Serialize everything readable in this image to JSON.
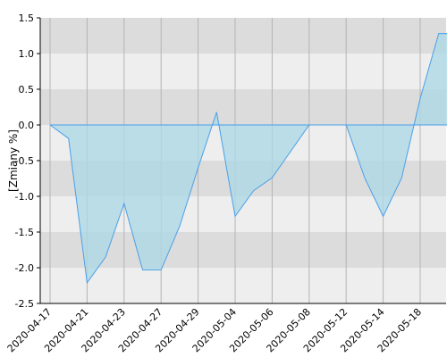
{
  "chart_data": {
    "type": "area",
    "ylabel": "[Zmiany %]",
    "ylim": [
      -2.5,
      1.5
    ],
    "yticks": [
      "1.5",
      "1.0",
      "0.5",
      "0.0",
      "-0.5",
      "-1.0",
      "-1.5",
      "-2.0",
      "-2.5"
    ],
    "xticks": [
      "2020-04-17",
      "2020-04-21",
      "2020-04-23",
      "2020-04-27",
      "2020-04-29",
      "2020-05-04",
      "2020-05-06",
      "2020-05-08",
      "2020-05-12",
      "2020-05-14",
      "2020-05-18"
    ],
    "grid": true,
    "series": [
      {
        "x": [
          "2020-04-17",
          "2020-04-20",
          "2020-04-21",
          "2020-04-22",
          "2020-04-23",
          "2020-04-24",
          "2020-04-27",
          "2020-04-28",
          "2020-04-29",
          "2020-04-30",
          "2020-05-04",
          "2020-05-05",
          "2020-05-06",
          "2020-05-07",
          "2020-05-08",
          "2020-05-11",
          "2020-05-12",
          "2020-05-13",
          "2020-05-14",
          "2020-05-15",
          "2020-05-18",
          "2020-05-19",
          "2020-05-20"
        ],
        "values": [
          0.0,
          -0.19,
          -2.21,
          -1.85,
          -1.1,
          -2.03,
          -2.03,
          -1.42,
          -0.6,
          0.18,
          -1.28,
          -0.92,
          -0.74,
          -0.37,
          0.0,
          0.0,
          0.0,
          -0.74,
          -1.28,
          -0.74,
          0.37,
          1.28,
          1.28
        ]
      }
    ],
    "colors": {
      "fill": "#add8e6",
      "line": "#4a9fe8",
      "band_dark": "#dcdcdc",
      "band_light": "#eeeeee",
      "grid": "#b4b4b4",
      "axis": "#000000"
    }
  }
}
